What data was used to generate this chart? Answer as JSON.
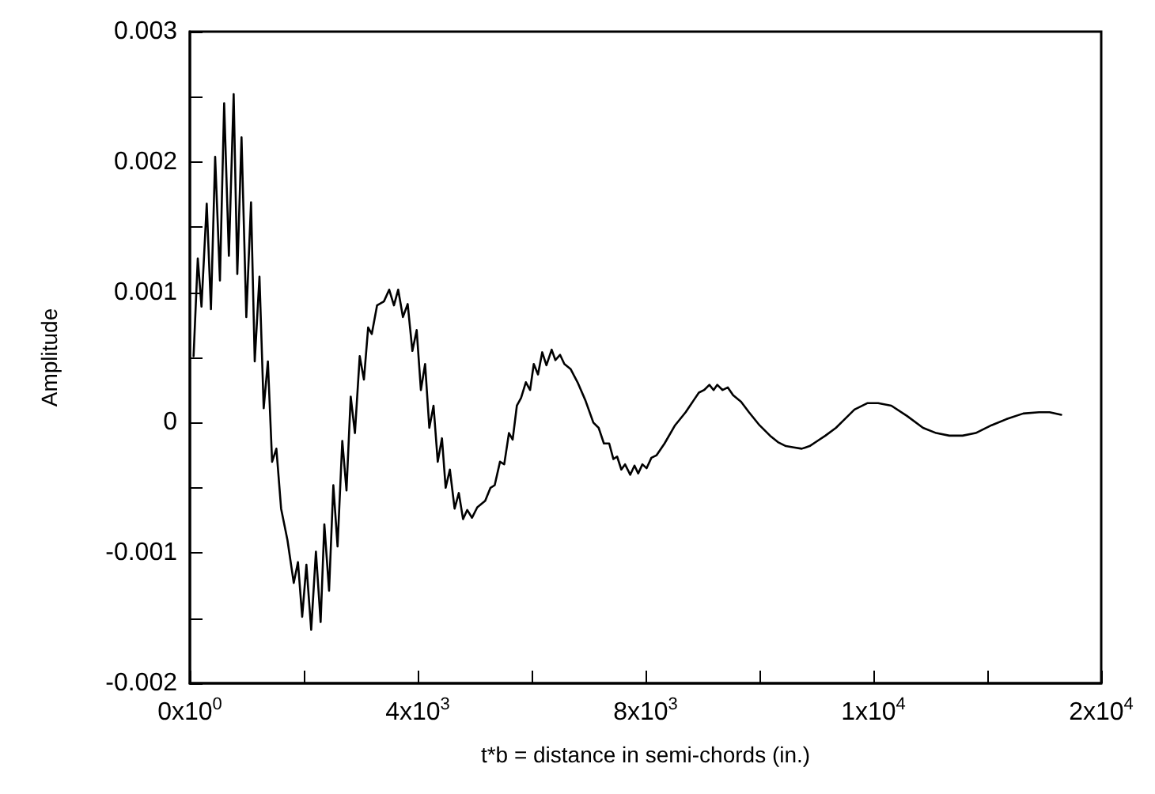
{
  "chart_data": {
    "type": "line",
    "xlabel": "t*b = distance in semi-chords (in.)",
    "ylabel": "Amplitude",
    "grid": false,
    "marker": "none",
    "line_style": "solid",
    "xlim": [
      0,
      16000
    ],
    "xticks": [
      {
        "value": 0,
        "label": "0x10$^{0}$"
      },
      {
        "value": 2000,
        "label": null
      },
      {
        "value": 4000,
        "label": "4x10$^{3}$"
      },
      {
        "value": 6000,
        "label": null
      },
      {
        "value": 8000,
        "label": "8x10$^{3}$"
      },
      {
        "value": 10000,
        "label": null
      },
      {
        "value": 12000,
        "label": "1x10$^{4}$"
      },
      {
        "value": 14000,
        "label": null
      },
      {
        "value": 16000,
        "label": "2x10$^{4}$"
      }
    ],
    "ylim": [
      -0.002,
      0.003
    ],
    "yticks": [
      -0.002,
      {
        "value": -0.0015,
        "label": null
      },
      -0.001,
      {
        "value": -0.0005,
        "label": null
      },
      0,
      {
        "value": 0.0005,
        "label": null
      },
      0.001,
      {
        "value": 0.0015,
        "label": null
      },
      0.002,
      {
        "value": 0.0025,
        "label": null
      },
      0.003
    ],
    "series": [
      {
        "color": "#000000",
        "x": [
          65,
          139,
          204,
          296,
          370,
          444,
          528,
          602,
          685,
          769,
          833,
          907,
          991,
          1074,
          1139,
          1222,
          1296,
          1370,
          1444,
          1519,
          1602,
          1713,
          1824,
          1898,
          1972,
          2046,
          2130,
          2213,
          2296,
          2361,
          2444,
          2519,
          2593,
          2676,
          2750,
          2824,
          2898,
          2982,
          3056,
          3130,
          3194,
          3287,
          3407,
          3500,
          3583,
          3657,
          3741,
          3824,
          3907,
          3982,
          4056,
          4130,
          4204,
          4278,
          4352,
          4426,
          4491,
          4565,
          4648,
          4722,
          4796,
          4870,
          4954,
          5046,
          5185,
          5278,
          5352,
          5445,
          5519,
          5602,
          5667,
          5741,
          5815,
          5899,
          5973,
          6038,
          6112,
          6186,
          6260,
          6352,
          6417,
          6500,
          6575,
          6686,
          6806,
          6945,
          7084,
          7177,
          7269,
          7362,
          7436,
          7501,
          7575,
          7640,
          7732,
          7806,
          7871,
          7945,
          8019,
          8103,
          8195,
          8334,
          8519,
          8704,
          8843,
          8936,
          9028,
          9121,
          9195,
          9260,
          9353,
          9445,
          9538,
          9677,
          9816,
          10001,
          10186,
          10325,
          10464,
          10603,
          10742,
          10881,
          11019,
          11158,
          11343,
          11482,
          11668,
          11899,
          12084,
          12316,
          12594,
          12872,
          13103,
          13334,
          13566,
          13797,
          14075,
          14353,
          14631,
          14909,
          15094,
          15298
        ],
        "values": [
          0.00051,
          0.00126,
          0.00089,
          0.00168,
          0.00087,
          0.00204,
          0.00109,
          0.00245,
          0.00128,
          0.00252,
          0.00114,
          0.00219,
          0.00081,
          0.00169,
          0.00047,
          0.00112,
          0.00011,
          0.00047,
          -0.0003,
          -0.0002,
          -0.00066,
          -0.0009,
          -0.00123,
          -0.00107,
          -0.00149,
          -0.00109,
          -0.00159,
          -0.00099,
          -0.00153,
          -0.00078,
          -0.00129,
          -0.00048,
          -0.00095,
          -0.00014,
          -0.00052,
          0.0002,
          -8e-05,
          0.00051,
          0.00033,
          0.00073,
          0.00068,
          0.0009,
          0.00093,
          0.00102,
          0.0009,
          0.00102,
          0.00081,
          0.00091,
          0.00055,
          0.00071,
          0.00025,
          0.00045,
          -4e-05,
          0.00013,
          -0.0003,
          -0.00012,
          -0.0005,
          -0.00036,
          -0.00066,
          -0.00054,
          -0.00074,
          -0.00067,
          -0.00073,
          -0.00065,
          -0.0006,
          -0.0005,
          -0.00048,
          -0.0003,
          -0.00032,
          -8e-05,
          -0.00013,
          0.00013,
          0.00019,
          0.00031,
          0.00025,
          0.00045,
          0.00037,
          0.00054,
          0.00044,
          0.00056,
          0.00048,
          0.00052,
          0.00045,
          0.00041,
          0.00031,
          0.00017,
          0,
          -4e-05,
          -0.00016,
          -0.00016,
          -0.00028,
          -0.00026,
          -0.00036,
          -0.00032,
          -0.0004,
          -0.00033,
          -0.00039,
          -0.00032,
          -0.00035,
          -0.00027,
          -0.00025,
          -0.00016,
          -2e-05,
          8e-05,
          0.00017,
          0.00023,
          0.00025,
          0.00029,
          0.00025,
          0.00029,
          0.00025,
          0.00027,
          0.00021,
          0.00016,
          8e-05,
          -2e-05,
          -0.0001,
          -0.00015,
          -0.00018,
          -0.00019,
          -0.0002,
          -0.00018,
          -0.00014,
          -0.0001,
          -4e-05,
          2e-05,
          0.0001,
          0.00015,
          0.00015,
          0.00013,
          5e-05,
          -4e-05,
          -8e-05,
          -0.0001,
          -0.0001,
          -8e-05,
          -2e-05,
          3e-05,
          7e-05,
          8e-05,
          8e-05,
          6e-05
        ]
      }
    ]
  }
}
